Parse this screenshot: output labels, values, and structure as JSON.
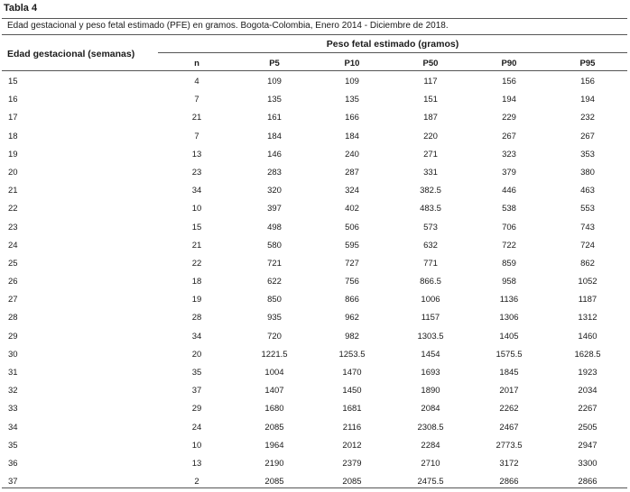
{
  "table_label": "Tabla 4",
  "caption": "Edad gestacional y peso fetal estimado (PFE) en gramos. Bogota-Colombia, Enero 2014 - Diciembre de 2018.",
  "first_column_header": "Edad gestacional (semanas)",
  "group_header": "Peso fetal estimado (gramos)",
  "columns": [
    "n",
    "P5",
    "P10",
    "P50",
    "P90",
    "P95"
  ],
  "rows": [
    [
      "15",
      "4",
      "109",
      "109",
      "117",
      "156",
      "156"
    ],
    [
      "16",
      "7",
      "135",
      "135",
      "151",
      "194",
      "194"
    ],
    [
      "17",
      "21",
      "161",
      "166",
      "187",
      "229",
      "232"
    ],
    [
      "18",
      "7",
      "184",
      "184",
      "220",
      "267",
      "267"
    ],
    [
      "19",
      "13",
      "146",
      "240",
      "271",
      "323",
      "353"
    ],
    [
      "20",
      "23",
      "283",
      "287",
      "331",
      "379",
      "380"
    ],
    [
      "21",
      "34",
      "320",
      "324",
      "382.5",
      "446",
      "463"
    ],
    [
      "22",
      "10",
      "397",
      "402",
      "483.5",
      "538",
      "553"
    ],
    [
      "23",
      "15",
      "498",
      "506",
      "573",
      "706",
      "743"
    ],
    [
      "24",
      "21",
      "580",
      "595",
      "632",
      "722",
      "724"
    ],
    [
      "25",
      "22",
      "721",
      "727",
      "771",
      "859",
      "862"
    ],
    [
      "26",
      "18",
      "622",
      "756",
      "866.5",
      "958",
      "1052"
    ],
    [
      "27",
      "19",
      "850",
      "866",
      "1006",
      "1136",
      "1187"
    ],
    [
      "28",
      "28",
      "935",
      "962",
      "1157",
      "1306",
      "1312"
    ],
    [
      "29",
      "34",
      "720",
      "982",
      "1303.5",
      "1405",
      "1460"
    ],
    [
      "30",
      "20",
      "1221.5",
      "1253.5",
      "1454",
      "1575.5",
      "1628.5"
    ],
    [
      "31",
      "35",
      "1004",
      "1470",
      "1693",
      "1845",
      "1923"
    ],
    [
      "32",
      "37",
      "1407",
      "1450",
      "1890",
      "2017",
      "2034"
    ],
    [
      "33",
      "29",
      "1680",
      "1681",
      "2084",
      "2262",
      "2267"
    ],
    [
      "34",
      "24",
      "2085",
      "2116",
      "2308.5",
      "2467",
      "2505"
    ],
    [
      "35",
      "10",
      "1964",
      "2012",
      "2284",
      "2773.5",
      "2947"
    ],
    [
      "36",
      "13",
      "2190",
      "2379",
      "2710",
      "3172",
      "3300"
    ],
    [
      "37",
      "2",
      "2085",
      "2085",
      "2475.5",
      "2866",
      "2866"
    ]
  ]
}
